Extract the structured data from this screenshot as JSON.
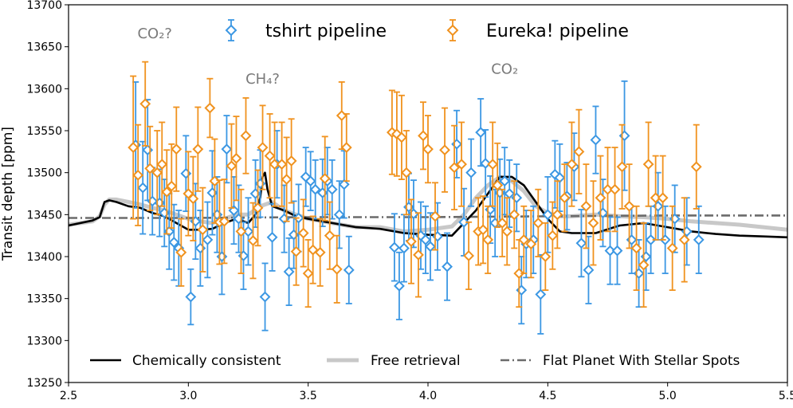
{
  "chart_data": {
    "type": "scatter",
    "xlim": [
      2.5,
      5.5
    ],
    "ylim": [
      13250,
      13700
    ],
    "xlabel": "",
    "ylabel": "Transit depth [ppm]",
    "x_ticks": [
      2.5,
      3.0,
      3.5,
      4.0,
      4.5,
      5.0,
      5.5
    ],
    "x_tick_labels": [
      "2.5",
      "3.0",
      "3.5",
      "4.0",
      "4.5",
      "5.0",
      "5.5"
    ],
    "y_ticks": [
      13250,
      13300,
      13350,
      13400,
      13450,
      13500,
      13550,
      13600,
      13650,
      13700
    ],
    "y_tick_labels": [
      "13250",
      "13300",
      "13350",
      "13400",
      "13450",
      "13500",
      "13550",
      "13600",
      "13650",
      "13700"
    ],
    "grid": false,
    "colors": {
      "tshirt": "#3b97e3",
      "eureka": "#f0921e",
      "chem": "#000000",
      "free": "#c8c8c8",
      "flat": "#6b6b6b",
      "annot": "#7a7a7a"
    },
    "series": [
      {
        "name": "tshirt pipeline",
        "kind": "errorbar",
        "color_key": "tshirt",
        "x": [
          2.78,
          2.81,
          2.83,
          2.85,
          2.88,
          2.9,
          2.92,
          2.94,
          2.96,
          2.99,
          3.01,
          3.03,
          3.05,
          3.08,
          3.1,
          3.12,
          3.14,
          3.16,
          3.19,
          3.21,
          3.23,
          3.25,
          3.28,
          3.3,
          3.32,
          3.35,
          3.37,
          3.4,
          3.42,
          3.44,
          3.46,
          3.49,
          3.51,
          3.53,
          3.56,
          3.58,
          3.6,
          3.63,
          3.65,
          3.67,
          3.86,
          3.88,
          3.9,
          3.92,
          3.94,
          3.97,
          3.99,
          4.01,
          4.04,
          4.08,
          4.12,
          4.15,
          4.18,
          4.22,
          4.24,
          4.26,
          4.28,
          4.3,
          4.32,
          4.34,
          4.37,
          4.39,
          4.41,
          4.44,
          4.47,
          4.5,
          4.53,
          4.55,
          4.58,
          4.61,
          4.64,
          4.67,
          4.7,
          4.73,
          4.76,
          4.79,
          4.82,
          4.85,
          4.88,
          4.91,
          4.93,
          4.96,
          4.99,
          5.03,
          5.08,
          5.13
        ],
        "y": [
          13533,
          13482,
          13527,
          13466,
          13464,
          13452,
          13430,
          13417,
          13410,
          13499,
          13352,
          13442,
          13410,
          13420,
          13476,
          13450,
          13400,
          13528,
          13455,
          13445,
          13401,
          13430,
          13475,
          13487,
          13352,
          13423,
          13510,
          13445,
          13382,
          13426,
          13446,
          13495,
          13490,
          13480,
          13476,
          13490,
          13480,
          13450,
          13486,
          13384,
          13411,
          13365,
          13410,
          13459,
          13451,
          13425,
          13420,
          13412,
          13424,
          13388,
          13534,
          13441,
          13500,
          13548,
          13511,
          13456,
          13440,
          13476,
          13490,
          13475,
          13470,
          13360,
          13415,
          13420,
          13355,
          13450,
          13498,
          13494,
          13472,
          13507,
          13416,
          13384,
          13539,
          13452,
          13407,
          13407,
          13544,
          13420,
          13380,
          13400,
          13420,
          13460,
          13420,
          13445,
          13430,
          13420
        ],
        "yerr": [
          75,
          55,
          60,
          40,
          40,
          40,
          45,
          45,
          45,
          45,
          33,
          45,
          45,
          45,
          50,
          45,
          45,
          40,
          40,
          40,
          40,
          40,
          40,
          40,
          40,
          40,
          40,
          40,
          40,
          40,
          40,
          35,
          35,
          35,
          40,
          40,
          35,
          40,
          40,
          40,
          40,
          40,
          40,
          40,
          40,
          40,
          40,
          40,
          40,
          40,
          40,
          40,
          40,
          40,
          40,
          40,
          40,
          40,
          40,
          40,
          40,
          40,
          40,
          40,
          47,
          45,
          40,
          40,
          40,
          40,
          40,
          40,
          40,
          40,
          40,
          40,
          65,
          40,
          40,
          40,
          40,
          40,
          40,
          40,
          40,
          40
        ]
      },
      {
        "name": "Eureka! pipeline",
        "kind": "errorbar",
        "color_key": "eureka",
        "x": [
          2.77,
          2.79,
          2.82,
          2.84,
          2.87,
          2.89,
          2.91,
          2.93,
          2.95,
          2.97,
          3.0,
          3.02,
          3.04,
          3.06,
          3.09,
          3.11,
          3.13,
          3.15,
          3.18,
          3.2,
          3.22,
          3.24,
          3.27,
          3.29,
          3.31,
          3.34,
          3.36,
          3.39,
          3.41,
          3.43,
          3.45,
          3.48,
          3.5,
          3.52,
          3.55,
          3.57,
          3.59,
          3.62,
          3.64,
          3.66,
          3.85,
          3.87,
          3.89,
          3.91,
          3.93,
          3.96,
          3.98,
          4.0,
          4.03,
          4.07,
          4.11,
          4.14,
          4.17,
          4.21,
          4.23,
          4.25,
          4.27,
          4.29,
          4.31,
          4.33,
          4.36,
          4.38,
          4.4,
          4.43,
          4.46,
          4.49,
          4.52,
          4.54,
          4.57,
          4.6,
          4.63,
          4.66,
          4.69,
          4.72,
          4.75,
          4.78,
          4.81,
          4.84,
          4.87,
          4.9,
          4.92,
          4.95,
          4.98,
          5.02,
          5.07,
          5.12
        ],
        "y": [
          13530,
          13497,
          13582,
          13505,
          13500,
          13510,
          13477,
          13484,
          13528,
          13405,
          13475,
          13469,
          13528,
          13432,
          13577,
          13490,
          13441,
          13442,
          13508,
          13517,
          13430,
          13544,
          13419,
          13458,
          13530,
          13520,
          13510,
          13510,
          13492,
          13514,
          13406,
          13428,
          13380,
          13408,
          13405,
          13493,
          13425,
          13385,
          13568,
          13530,
          13548,
          13546,
          13542,
          13500,
          13418,
          13402,
          13544,
          13528,
          13448,
          13527,
          13506,
          13510,
          13401,
          13430,
          13432,
          13420,
          13510,
          13485,
          13440,
          13430,
          13450,
          13380,
          13420,
          13415,
          13440,
          13400,
          13425,
          13450,
          13470,
          13510,
          13525,
          13460,
          13440,
          13470,
          13480,
          13480,
          13507,
          13460,
          13410,
          13390,
          13510,
          13470,
          13470,
          13410,
          13420,
          13507
        ],
        "yerr": [
          85,
          60,
          50,
          50,
          50,
          50,
          50,
          50,
          50,
          40,
          50,
          50,
          50,
          50,
          35,
          50,
          50,
          50,
          50,
          50,
          50,
          45,
          45,
          45,
          50,
          50,
          50,
          50,
          50,
          50,
          40,
          40,
          40,
          40,
          40,
          50,
          40,
          40,
          40,
          40,
          50,
          50,
          50,
          50,
          50,
          50,
          40,
          40,
          40,
          50,
          50,
          50,
          40,
          40,
          40,
          40,
          50,
          50,
          40,
          40,
          40,
          40,
          40,
          40,
          40,
          40,
          40,
          40,
          40,
          50,
          50,
          50,
          50,
          50,
          50,
          50,
          50,
          50,
          50,
          50,
          50,
          50,
          50,
          50,
          50,
          50
        ]
      },
      {
        "name": "Chemically consistent",
        "kind": "line",
        "color_key": "chem",
        "x": [
          2.5,
          2.55,
          2.6,
          2.63,
          2.65,
          2.67,
          2.7,
          2.75,
          2.8,
          2.85,
          2.9,
          2.95,
          3.0,
          3.05,
          3.1,
          3.15,
          3.2,
          3.25,
          3.28,
          3.3,
          3.31,
          3.32,
          3.33,
          3.35,
          3.4,
          3.45,
          3.5,
          3.6,
          3.7,
          3.8,
          3.9,
          4.0,
          4.1,
          4.15,
          4.2,
          4.25,
          4.3,
          4.35,
          4.4,
          4.45,
          4.5,
          4.55,
          4.6,
          4.7,
          4.8,
          4.9,
          5.0,
          5.1,
          5.2,
          5.3,
          5.4,
          5.5
        ],
        "y": [
          13437,
          13440,
          13443,
          13447,
          13465,
          13467,
          13465,
          13460,
          13458,
          13452,
          13448,
          13440,
          13432,
          13432,
          13433,
          13440,
          13445,
          13440,
          13450,
          13470,
          13495,
          13500,
          13480,
          13460,
          13455,
          13448,
          13445,
          13440,
          13435,
          13433,
          13428,
          13426,
          13425,
          13440,
          13455,
          13475,
          13495,
          13495,
          13485,
          13465,
          13445,
          13430,
          13428,
          13428,
          13437,
          13440,
          13435,
          13430,
          13427,
          13425,
          13424,
          13423
        ]
      },
      {
        "name": "Free retrieval",
        "kind": "line",
        "color_key": "free",
        "x": [
          2.5,
          2.55,
          2.6,
          2.63,
          2.65,
          2.67,
          2.7,
          2.75,
          2.8,
          2.85,
          2.9,
          2.95,
          3.0,
          3.05,
          3.1,
          3.15,
          3.2,
          3.25,
          3.3,
          3.35,
          3.4,
          3.5,
          3.6,
          3.7,
          3.8,
          3.9,
          4.0,
          4.1,
          4.15,
          4.2,
          4.25,
          4.3,
          4.35,
          4.4,
          4.45,
          4.5,
          4.55,
          4.6,
          4.7,
          4.8,
          4.9,
          5.0,
          5.1,
          5.2,
          5.3,
          5.4,
          5.5
        ],
        "y": [
          13438,
          13440,
          13442,
          13448,
          13462,
          13468,
          13468,
          13465,
          13462,
          13458,
          13455,
          13450,
          13445,
          13442,
          13440,
          13445,
          13450,
          13450,
          13460,
          13465,
          13455,
          13445,
          13440,
          13435,
          13435,
          13430,
          13432,
          13436,
          13450,
          13470,
          13485,
          13495,
          13490,
          13478,
          13460,
          13452,
          13448,
          13448,
          13450,
          13448,
          13447,
          13445,
          13442,
          13440,
          13438,
          13435,
          13432
        ]
      },
      {
        "name": "Flat Planet With Stellar Spots",
        "kind": "line",
        "color_key": "flat",
        "x": [
          2.5,
          3.0,
          3.5,
          4.0,
          4.5,
          5.0,
          5.5
        ],
        "y": [
          13446,
          13446,
          13447,
          13447,
          13448,
          13449,
          13449
        ]
      }
    ],
    "legend_top": [
      "tshirt pipeline",
      "Eureka! pipeline"
    ],
    "legend_bottom": [
      "Chemically consistent",
      "Free retrieval",
      "Flat Planet With Stellar Spots"
    ],
    "legend_placement": "top-center and bottom-center",
    "annotations": [
      {
        "text": "CO₂?",
        "x": 2.86,
        "y": 13660
      },
      {
        "text": "CH₄?",
        "x": 3.31,
        "y": 13606
      },
      {
        "text": "CO₂",
        "x": 4.32,
        "y": 13618
      }
    ]
  }
}
